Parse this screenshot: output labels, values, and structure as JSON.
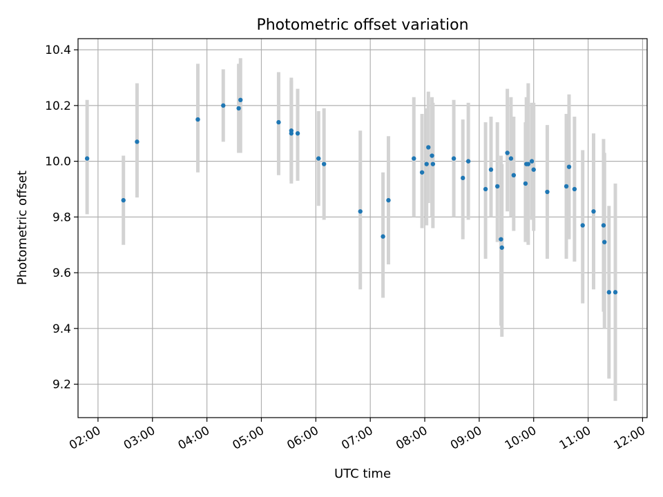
{
  "chart_data": {
    "type": "scatter",
    "title": "Photometric offset variation",
    "xlabel": "UTC time",
    "ylabel": "Photometric offset",
    "xlim": [
      "01:38",
      "12:05"
    ],
    "ylim": [
      9.08,
      10.44
    ],
    "xticks": [
      "02:00",
      "03:00",
      "04:00",
      "05:00",
      "06:00",
      "07:00",
      "08:00",
      "09:00",
      "10:00",
      "11:00",
      "12:00"
    ],
    "yticks": [
      9.2,
      9.4,
      9.6,
      9.8,
      10.0,
      10.2,
      10.4
    ],
    "grid": true,
    "marker_color": "#1f77b4",
    "errorbar_color": "#d3d3d3",
    "series": [
      {
        "x": [
          "01:48",
          "02:28",
          "02:43",
          "03:50",
          "04:18",
          "04:35",
          "04:37",
          "05:19",
          "05:33",
          "05:33",
          "05:40",
          "06:03",
          "06:09",
          "06:49",
          "07:14",
          "07:20",
          "07:48",
          "07:57",
          "08:02",
          "08:04",
          "08:08",
          "08:09",
          "08:32",
          "08:42",
          "08:48",
          "09:07",
          "09:13",
          "09:20",
          "09:24",
          "09:25",
          "09:31",
          "09:35",
          "09:38",
          "09:51",
          "09:52",
          "09:54",
          "09:58",
          "10:00",
          "10:15",
          "10:36",
          "10:39",
          "10:45",
          "10:54",
          "11:06",
          "11:17",
          "11:18",
          "11:23",
          "11:30"
        ],
        "y": [
          10.01,
          9.86,
          10.07,
          10.15,
          10.2,
          10.19,
          10.22,
          10.14,
          10.11,
          10.1,
          10.1,
          10.01,
          9.99,
          9.82,
          9.73,
          9.86,
          10.01,
          9.96,
          9.99,
          10.05,
          10.02,
          9.99,
          10.01,
          9.94,
          10.0,
          9.9,
          9.97,
          9.91,
          9.72,
          9.69,
          10.03,
          10.01,
          9.95,
          9.92,
          9.99,
          9.99,
          10.0,
          9.97,
          9.89,
          9.91,
          9.98,
          9.9,
          9.77,
          9.82,
          9.77,
          9.71,
          9.53,
          9.53
        ],
        "y_lower": [
          9.81,
          9.7,
          9.87,
          9.96,
          10.07,
          10.03,
          10.03,
          9.95,
          9.93,
          9.92,
          9.93,
          9.84,
          9.79,
          9.54,
          9.51,
          9.63,
          9.8,
          9.76,
          9.77,
          9.85,
          9.8,
          9.76,
          9.8,
          9.72,
          9.79,
          9.65,
          9.8,
          9.71,
          9.41,
          9.37,
          9.82,
          9.8,
          9.75,
          9.71,
          9.72,
          9.7,
          9.79,
          9.75,
          9.65,
          9.65,
          9.72,
          9.64,
          9.49,
          9.54,
          9.46,
          9.4,
          9.22,
          9.14
        ],
        "y_upper": [
          10.22,
          10.02,
          10.28,
          10.35,
          10.33,
          10.35,
          10.37,
          10.32,
          10.3,
          10.29,
          10.26,
          10.18,
          10.19,
          10.11,
          9.96,
          10.09,
          10.23,
          10.17,
          10.19,
          10.25,
          10.23,
          10.21,
          10.22,
          10.15,
          10.21,
          10.14,
          10.16,
          10.14,
          10.02,
          9.99,
          10.26,
          10.23,
          10.16,
          10.14,
          10.23,
          10.28,
          10.21,
          10.21,
          10.13,
          10.17,
          10.24,
          10.16,
          10.04,
          10.1,
          10.08,
          10.03,
          9.84,
          9.92
        ]
      }
    ]
  }
}
